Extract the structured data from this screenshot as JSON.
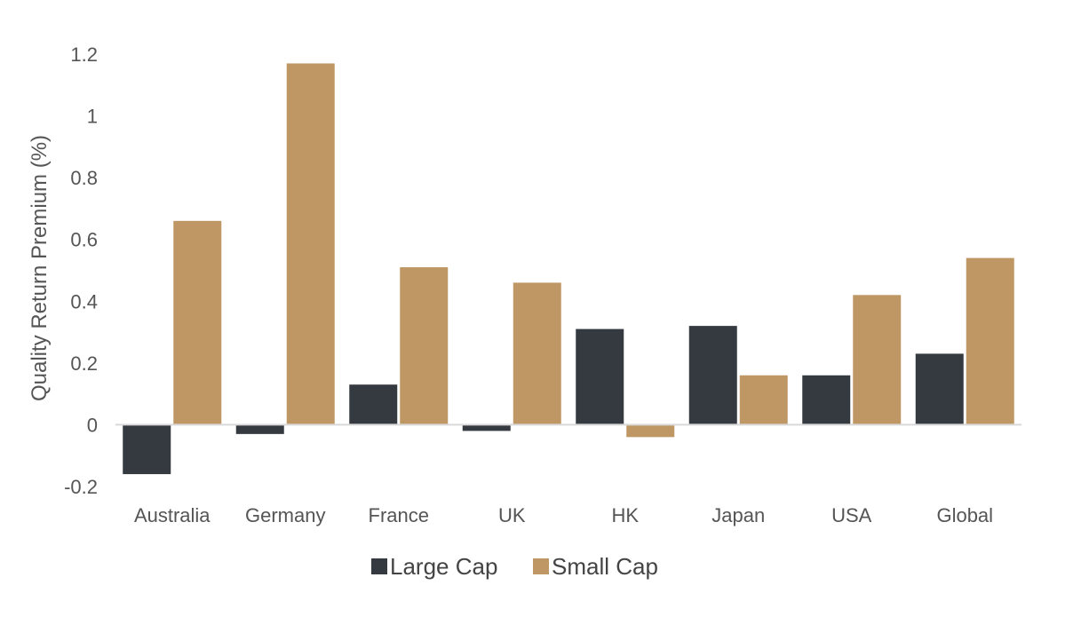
{
  "chart_data": {
    "type": "bar",
    "title": "",
    "xlabel": "",
    "ylabel": "Quality Return Premium (%)",
    "categories": [
      "Australia",
      "Germany",
      "France",
      "UK",
      "HK",
      "Japan",
      "USA",
      "Global"
    ],
    "series": [
      {
        "name": "Large Cap",
        "color": "#343a40",
        "values": [
          -0.16,
          -0.03,
          0.13,
          -0.02,
          0.31,
          0.32,
          0.16,
          0.23
        ]
      },
      {
        "name": "Small Cap",
        "color": "#bf9765",
        "values": [
          0.66,
          1.17,
          0.51,
          0.46,
          -0.04,
          0.16,
          0.42,
          0.54
        ]
      }
    ],
    "ylim": [
      -0.2,
      1.2
    ],
    "yticks": [
      "-0.2",
      "0",
      "0.2",
      "0.4",
      "0.6",
      "0.8",
      "1",
      "1.2"
    ],
    "grid": false,
    "legend": "bottom-center"
  }
}
